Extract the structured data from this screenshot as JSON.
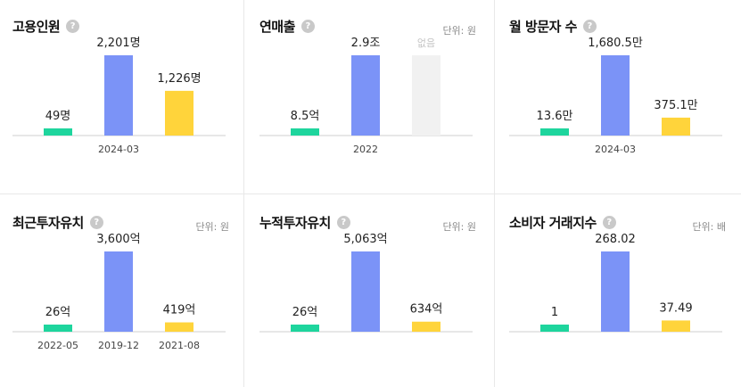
{
  "colors": {
    "bar1": "#1ed59d",
    "bar2": "#7b93f7",
    "bar3": "#ffd43b",
    "empty": "#f1f1f1",
    "baseline": "#cfcfcf"
  },
  "help_icon": "?",
  "chart_data": [
    {
      "type": "bar",
      "title": "고용인원",
      "unit": "",
      "categories": [
        "",
        "2024-03",
        ""
      ],
      "values": [
        49,
        2201,
        1226
      ],
      "labels": [
        "49명",
        "2,201명",
        "1,226명"
      ],
      "ylim": [
        0,
        2201
      ]
    },
    {
      "type": "bar",
      "title": "연매출",
      "unit": "단위: 원",
      "categories": [
        "",
        "2022",
        ""
      ],
      "values": [
        8.5,
        29000,
        null
      ],
      "labels": [
        "8.5억",
        "2.9조",
        "없음"
      ],
      "ylim": [
        0,
        29000
      ]
    },
    {
      "type": "bar",
      "title": "월 방문자 수",
      "unit": "",
      "categories": [
        "",
        "2024-03",
        ""
      ],
      "values": [
        13.6,
        1680.5,
        375.1
      ],
      "labels": [
        "13.6만",
        "1,680.5만",
        "375.1만"
      ],
      "ylim": [
        0,
        1680.5
      ]
    },
    {
      "type": "bar",
      "title": "최근투자유치",
      "unit": "단위: 원",
      "categories": [
        "2022-05",
        "2019-12",
        "2021-08"
      ],
      "values": [
        26,
        3600,
        419
      ],
      "labels": [
        "26억",
        "3,600억",
        "419억"
      ],
      "ylim": [
        0,
        3600
      ]
    },
    {
      "type": "bar",
      "title": "누적투자유치",
      "unit": "단위: 원",
      "categories": [
        "",
        "",
        ""
      ],
      "values": [
        26,
        5063,
        634
      ],
      "labels": [
        "26억",
        "5,063억",
        "634억"
      ],
      "ylim": [
        0,
        5063
      ]
    },
    {
      "type": "bar",
      "title": "소비자 거래지수",
      "unit": "단위: 배",
      "categories": [
        "",
        "",
        ""
      ],
      "values": [
        1,
        268.02,
        37.49
      ],
      "labels": [
        "1",
        "268.02",
        "37.49"
      ],
      "ylim": [
        0,
        268.02
      ]
    }
  ]
}
